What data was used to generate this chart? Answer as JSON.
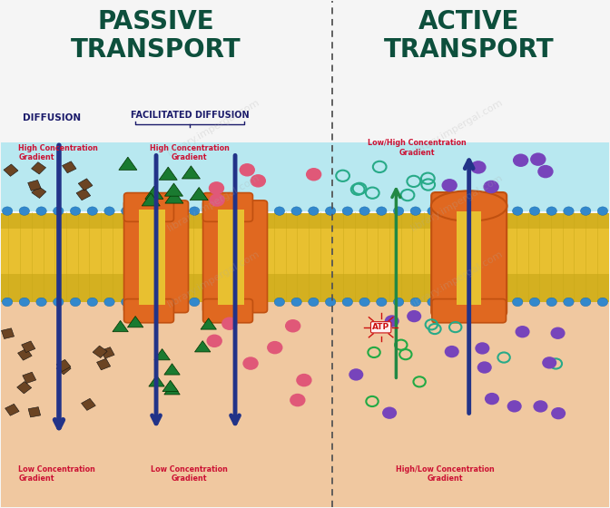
{
  "title_left": "PASSIVE\nTRANSPORT",
  "title_right": "ACTIVE\nTRANSPORT",
  "title_fontsize": 20,
  "title_color": "#0d4f3c",
  "label_diffusion": "DIFFUSION",
  "label_facilitated": "FACILITATED DIFFUSION",
  "label_color": "#1a1a6a",
  "high_conc_color": "#cc1133",
  "bg_white": "#f5f5f5",
  "bg_top_membrane": "#b8e8f0",
  "bg_bottom_color": "#f0c8a0",
  "membrane_yellow": "#e8c830",
  "membrane_yellow2": "#d4b820",
  "membrane_border_top": "#4488cc",
  "membrane_border_bot": "#4488cc",
  "membrane_protein_color": "#e06820",
  "membrane_protein_dark": "#c05010",
  "arrow_color": "#223388",
  "arrow_green": "#228844",
  "divider_color": "#555555",
  "fig_bg": "#f5f5f5",
  "particle_brown": "#6b4423",
  "particle_green": "#1a7a30",
  "particle_pink": "#e05878",
  "particle_teal": "#28aa88",
  "particle_purple": "#7744bb",
  "particle_green2": "#22aa44"
}
